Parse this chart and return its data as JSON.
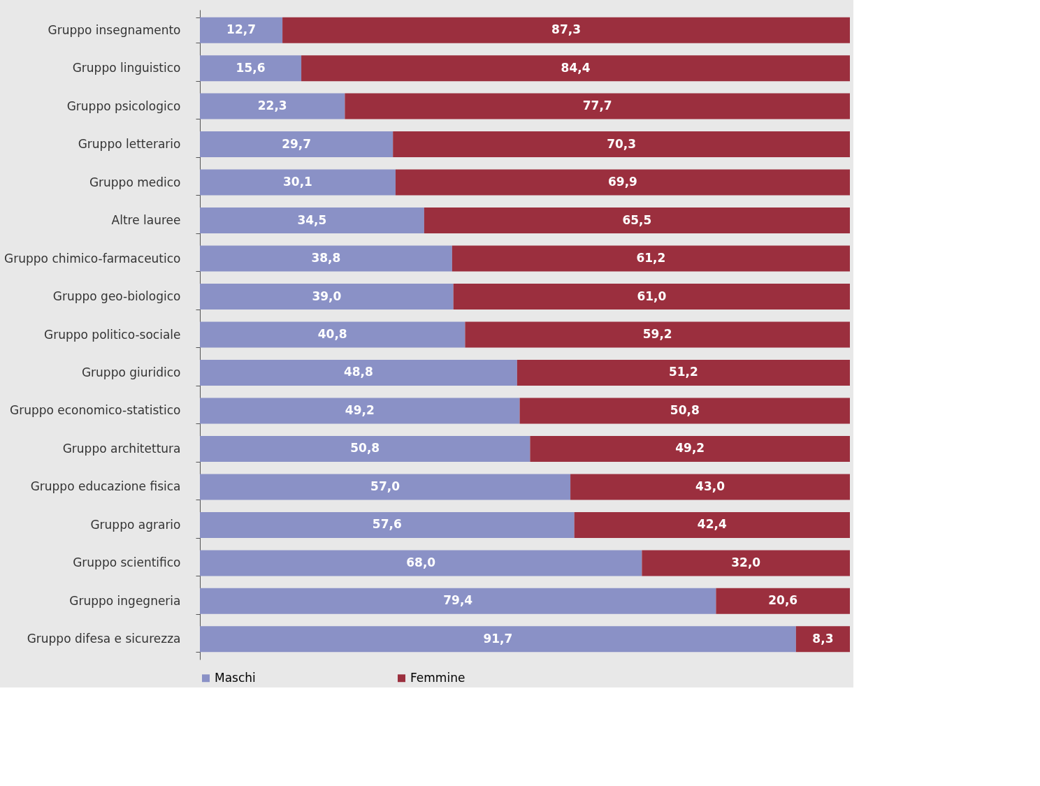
{
  "chart_data": {
    "type": "bar",
    "orientation": "horizontal",
    "stacked": true,
    "categories": [
      "Gruppo insegnamento",
      "Gruppo linguistico",
      "Gruppo psicologico",
      "Gruppo letterario",
      "Gruppo medico",
      "Altre lauree",
      "Gruppo chimico-farmaceutico",
      "Gruppo geo-biologico",
      "Gruppo politico-sociale",
      "Gruppo giuridico",
      "Gruppo economico-statistico",
      "Gruppo architettura",
      "Gruppo educazione fisica",
      "Gruppo agrario",
      "Gruppo scientifico",
      "Gruppo ingegneria",
      "Gruppo difesa e sicurezza"
    ],
    "series": [
      {
        "name": "Maschi",
        "color": "#8a91c6",
        "values": [
          12.7,
          15.6,
          22.3,
          29.7,
          30.1,
          34.5,
          38.8,
          39.0,
          40.8,
          48.8,
          49.2,
          50.8,
          57.0,
          57.6,
          68.0,
          79.4,
          91.7
        ],
        "value_labels": [
          "12,7",
          "15,6",
          "22,3",
          "29,7",
          "30,1",
          "34,5",
          "38,8",
          "39,0",
          "40,8",
          "48,8",
          "49,2",
          "50,8",
          "57,0",
          "57,6",
          "68,0",
          "79,4",
          "91,7"
        ]
      },
      {
        "name": "Femmine",
        "color": "#9b2f3e",
        "values": [
          87.3,
          84.4,
          77.7,
          70.3,
          69.9,
          65.5,
          61.2,
          61.0,
          59.2,
          51.2,
          50.8,
          49.2,
          43.0,
          42.4,
          32.0,
          20.6,
          8.3
        ],
        "value_labels": [
          "87,3",
          "84,4",
          "77,7",
          "70,3",
          "69,9",
          "65,5",
          "61,2",
          "61,0",
          "59,2",
          "51,2",
          "50,8",
          "49,2",
          "43,0",
          "42,4",
          "32,0",
          "20,6",
          "8,3"
        ]
      }
    ],
    "xlim": [
      0,
      100
    ],
    "tick_labels": "y",
    "legend": "bottom"
  }
}
